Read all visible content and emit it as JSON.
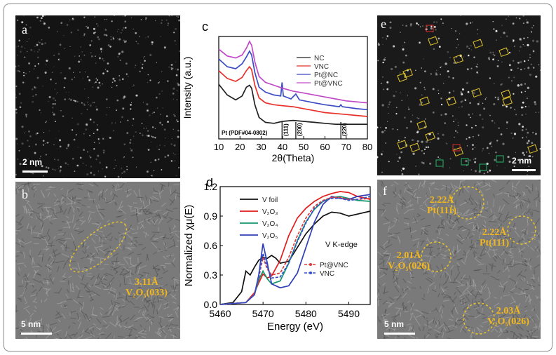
{
  "panels": {
    "a": {
      "label": "a",
      "scale": "2 nm"
    },
    "b": {
      "label": "b",
      "scale": "5 nm",
      "annotation": "3.11Å",
      "annotation_phase": "V₂O₅(033)"
    },
    "c": {
      "label": "c"
    },
    "d": {
      "label": "d"
    },
    "e": {
      "label": "e",
      "scale": "2 nm"
    },
    "f": {
      "label": "f",
      "scale": "5 nm",
      "annotations": [
        {
          "d": "2.22Å",
          "phase": "Pt(111)"
        },
        {
          "d": "2.22Å",
          "phase": "Pt(111)"
        },
        {
          "d": "2.01Å",
          "phase": "V₂O₅(026)"
        },
        {
          "d": "2.03Å",
          "phase": "V₂O₅(026)"
        }
      ]
    }
  },
  "chart_data": [
    {
      "panel": "c",
      "type": "line",
      "xlabel": "2θ(Theta)",
      "ylabel": "Intensity (a.u.)",
      "xlim": [
        10,
        80
      ],
      "xticks": [
        "10",
        "20",
        "30",
        "40",
        "50",
        "60",
        "70",
        "80"
      ],
      "grid": false,
      "legend": "right",
      "reference": {
        "label": "Pt (PDF#04-0802)",
        "peaks": [
          {
            "x": 39.8,
            "label": "(111)"
          },
          {
            "x": 46.3,
            "label": "(200)"
          },
          {
            "x": 67.5,
            "label": "(220)"
          }
        ]
      },
      "series": [
        {
          "name": "NC",
          "color": "#222222",
          "x": [
            10,
            14,
            18,
            21,
            23,
            24.5,
            25.5,
            27,
            29,
            32,
            36,
            40,
            45,
            50,
            55,
            60,
            65,
            70,
            75,
            80
          ],
          "y": [
            0.56,
            0.45,
            0.4,
            0.44,
            0.53,
            0.55,
            0.52,
            0.35,
            0.22,
            0.17,
            0.16,
            0.18,
            0.19,
            0.18,
            0.17,
            0.16,
            0.15,
            0.15,
            0.15,
            0.15
          ]
        },
        {
          "name": "VNC",
          "color": "#e8302a",
          "x": [
            10,
            14,
            18,
            21,
            23,
            24.5,
            25.5,
            27,
            29,
            32,
            36,
            40,
            45,
            50,
            55,
            60,
            65,
            70,
            75,
            80
          ],
          "y": [
            0.7,
            0.62,
            0.59,
            0.63,
            0.7,
            0.74,
            0.71,
            0.55,
            0.42,
            0.37,
            0.35,
            0.34,
            0.33,
            0.31,
            0.29,
            0.27,
            0.26,
            0.25,
            0.24,
            0.23
          ]
        },
        {
          "name": "Pt@NC",
          "color": "#3b4bc4",
          "x": [
            10,
            14,
            18,
            21,
            23,
            24.5,
            25.5,
            27,
            29,
            32,
            36,
            39.2,
            39.8,
            40.4,
            44,
            46.3,
            48,
            55,
            60,
            66.8,
            67.5,
            68.2,
            75,
            80
          ],
          "y": [
            0.82,
            0.74,
            0.72,
            0.77,
            0.84,
            0.9,
            0.86,
            0.68,
            0.53,
            0.48,
            0.45,
            0.44,
            0.58,
            0.44,
            0.41,
            0.46,
            0.4,
            0.37,
            0.35,
            0.33,
            0.35,
            0.33,
            0.31,
            0.3
          ]
        },
        {
          "name": "Pt@VNC",
          "color": "#c04ac8",
          "x": [
            10,
            14,
            18,
            21,
            23,
            24.5,
            25.5,
            27,
            29,
            32,
            36,
            40,
            45,
            50,
            55,
            60,
            65,
            70,
            75,
            80
          ],
          "y": [
            0.92,
            0.85,
            0.83,
            0.86,
            0.93,
            1.0,
            0.96,
            0.79,
            0.64,
            0.58,
            0.55,
            0.52,
            0.49,
            0.47,
            0.45,
            0.43,
            0.41,
            0.39,
            0.38,
            0.37
          ]
        }
      ]
    },
    {
      "panel": "d",
      "type": "line",
      "xlabel": "Energy (eV)",
      "ylabel": "Normalized χμ(E)",
      "xlim": [
        5460,
        5495
      ],
      "ylim": [
        0.0,
        1.2
      ],
      "xticks": [
        "5460",
        "5470",
        "5480",
        "5490"
      ],
      "yticks": [
        "0.0",
        "0.3",
        "0.6",
        "0.9",
        "1.2"
      ],
      "annotation": "V K-edge",
      "grid": false,
      "legend": "top-left",
      "series": [
        {
          "name": "V foil",
          "color": "#111111",
          "x": [
            5460,
            5463,
            5465,
            5466,
            5467,
            5468,
            5469,
            5470,
            5471,
            5472,
            5473,
            5474,
            5476,
            5478,
            5480,
            5482,
            5484,
            5486,
            5488,
            5490,
            5492,
            5495
          ],
          "y": [
            0.0,
            0.02,
            0.13,
            0.34,
            0.3,
            0.38,
            0.45,
            0.48,
            0.47,
            0.5,
            0.47,
            0.42,
            0.44,
            0.58,
            0.72,
            0.82,
            0.9,
            0.94,
            0.93,
            0.9,
            0.92,
            0.95
          ]
        },
        {
          "name": "V₂O₃",
          "color": "#e11d1d",
          "x": [
            5460,
            5466,
            5468,
            5469,
            5470,
            5471,
            5472,
            5474,
            5476,
            5478,
            5480,
            5482,
            5484,
            5486,
            5488,
            5490,
            5492,
            5495
          ],
          "y": [
            0.0,
            0.02,
            0.12,
            0.22,
            0.31,
            0.27,
            0.29,
            0.45,
            0.7,
            0.88,
            0.98,
            1.05,
            1.1,
            1.13,
            1.15,
            1.14,
            1.1,
            1.07
          ]
        },
        {
          "name": "V₂O₄",
          "color": "#14946e",
          "x": [
            5460,
            5466,
            5468,
            5469,
            5470,
            5471,
            5472,
            5474,
            5476,
            5478,
            5480,
            5482,
            5484,
            5486,
            5488,
            5490,
            5492,
            5495
          ],
          "y": [
            0.0,
            0.02,
            0.1,
            0.25,
            0.34,
            0.26,
            0.21,
            0.24,
            0.42,
            0.65,
            0.84,
            0.97,
            1.05,
            1.09,
            1.1,
            1.08,
            1.06,
            1.05
          ]
        },
        {
          "name": "V₂O₅",
          "color": "#2f3fb6",
          "x": [
            5460,
            5466,
            5468,
            5469,
            5470,
            5471,
            5472,
            5474,
            5476,
            5478,
            5480,
            5482,
            5484,
            5486,
            5488,
            5490,
            5492,
            5495
          ],
          "y": [
            0.0,
            0.02,
            0.1,
            0.3,
            0.62,
            0.42,
            0.21,
            0.17,
            0.19,
            0.32,
            0.58,
            0.84,
            1.02,
            1.1,
            1.08,
            1.07,
            1.1,
            1.12
          ]
        },
        {
          "name": "Pt@VNC",
          "color": "#e23a3a",
          "dashed": true,
          "x": [
            5460,
            5466,
            5468,
            5469,
            5470,
            5471,
            5472,
            5474,
            5476,
            5478,
            5480,
            5482,
            5484,
            5486,
            5488,
            5490,
            5492,
            5495
          ],
          "y": [
            0.0,
            0.02,
            0.1,
            0.27,
            0.48,
            0.36,
            0.3,
            0.32,
            0.48,
            0.7,
            0.88,
            1.0,
            1.06,
            1.09,
            1.09,
            1.07,
            1.07,
            1.08
          ]
        },
        {
          "name": "VNC",
          "color": "#3551c8",
          "dashed": true,
          "x": [
            5460,
            5466,
            5468,
            5469,
            5470,
            5471,
            5472,
            5474,
            5476,
            5478,
            5480,
            5482,
            5484,
            5486,
            5488,
            5490,
            5492,
            5495
          ],
          "y": [
            0.0,
            0.02,
            0.1,
            0.28,
            0.52,
            0.38,
            0.27,
            0.28,
            0.42,
            0.64,
            0.83,
            0.98,
            1.05,
            1.08,
            1.08,
            1.06,
            1.07,
            1.1
          ]
        }
      ]
    }
  ]
}
